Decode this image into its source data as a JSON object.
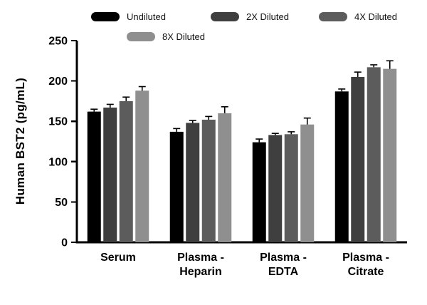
{
  "chart_data": {
    "type": "bar",
    "title": "",
    "ylabel": "Human BST2 (pg/mL)",
    "xlabel": "",
    "ylim": [
      0,
      250
    ],
    "yticks": [
      0,
      50,
      100,
      150,
      200,
      250
    ],
    "grid": false,
    "legend_position": "top",
    "axis_color": "#000000",
    "background_color": "#ffffff",
    "categories": [
      "Serum",
      "Plasma -\nHeparin",
      "Plasma -\nEDTA",
      "Plasma -\nCitrate"
    ],
    "series": [
      {
        "name": "Undiluted",
        "color": "#000000",
        "values": [
          162,
          137,
          124,
          187
        ],
        "errors": [
          3,
          4,
          4,
          3
        ]
      },
      {
        "name": "2X Diluted",
        "color": "#3f3f3f",
        "values": [
          167,
          148,
          133,
          205
        ],
        "errors": [
          4,
          3,
          2,
          6
        ]
      },
      {
        "name": "4X Diluted",
        "color": "#5c5c5c",
        "values": [
          175,
          152,
          134,
          217
        ],
        "errors": [
          5,
          4,
          3,
          3
        ]
      },
      {
        "name": "8X Diluted",
        "color": "#8f8f8f",
        "values": [
          188,
          160,
          146,
          215
        ],
        "errors": [
          5,
          8,
          8,
          10
        ]
      }
    ]
  }
}
